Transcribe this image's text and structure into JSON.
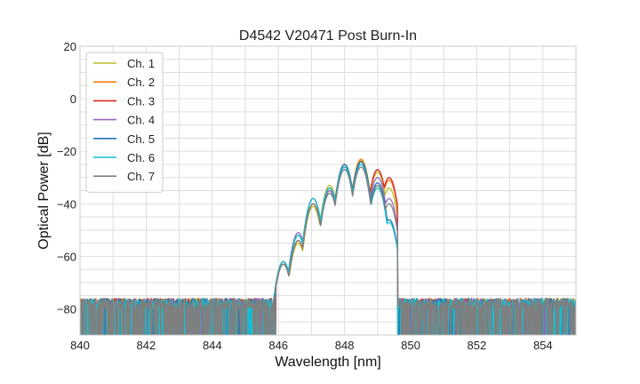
{
  "chart_data": {
    "type": "line",
    "title": "D4542 V20471 Post Burn-In",
    "xlabel": "Wavelength [nm]",
    "ylabel": "Optical Power [dB]",
    "xlim": [
      840,
      855
    ],
    "ylim": [
      -90,
      20
    ],
    "x_ticks": [
      840,
      842,
      844,
      846,
      848,
      850,
      852,
      854
    ],
    "y_ticks": [
      20,
      0,
      -20,
      -40,
      -60,
      -80
    ],
    "x_tick_labels": [
      "840",
      "842",
      "844",
      "846",
      "848",
      "850",
      "852",
      "854"
    ],
    "y_tick_labels": [
      "20",
      "0",
      "−20",
      "−40",
      "−60",
      "−80"
    ],
    "grid": true,
    "legend_position": "top-left",
    "noise_floor": -78,
    "signal_band": [
      845.8,
      849.6
    ],
    "series": [
      {
        "name": "Ch. 1",
        "color": "#bcbd22",
        "peaks": [
          [
            846.15,
            -62
          ],
          [
            846.6,
            -55
          ],
          [
            847.05,
            -41
          ],
          [
            847.55,
            -33
          ],
          [
            848.0,
            -25
          ],
          [
            848.5,
            -23.5
          ],
          [
            849.0,
            -28
          ],
          [
            849.35,
            -34
          ]
        ]
      },
      {
        "name": "Ch. 2",
        "color": "#ff7f0e",
        "peaks": [
          [
            846.15,
            -62
          ],
          [
            846.6,
            -54
          ],
          [
            847.05,
            -40
          ],
          [
            847.55,
            -34
          ],
          [
            848.0,
            -25
          ],
          [
            848.5,
            -23
          ],
          [
            849.0,
            -27
          ],
          [
            849.35,
            -31
          ]
        ]
      },
      {
        "name": "Ch. 3",
        "color": "#d62728",
        "peaks": [
          [
            846.15,
            -63
          ],
          [
            846.6,
            -54
          ],
          [
            847.05,
            -40
          ],
          [
            847.55,
            -35
          ],
          [
            848.0,
            -26
          ],
          [
            848.5,
            -24
          ],
          [
            849.0,
            -27
          ],
          [
            849.35,
            -30
          ]
        ]
      },
      {
        "name": "Ch. 4",
        "color": "#9467bd",
        "peaks": [
          [
            846.15,
            -62
          ],
          [
            846.6,
            -51
          ],
          [
            847.05,
            -38
          ],
          [
            847.55,
            -35
          ],
          [
            848.0,
            -26
          ],
          [
            848.5,
            -24
          ],
          [
            849.0,
            -30
          ],
          [
            849.35,
            -38
          ]
        ]
      },
      {
        "name": "Ch. 5",
        "color": "#1f77b4",
        "peaks": [
          [
            846.15,
            -62
          ],
          [
            846.6,
            -52
          ],
          [
            847.05,
            -38
          ],
          [
            847.55,
            -34
          ],
          [
            848.0,
            -25
          ],
          [
            848.5,
            -24
          ],
          [
            849.0,
            -32
          ],
          [
            849.35,
            -46
          ]
        ]
      },
      {
        "name": "Ch. 6",
        "color": "#17becf",
        "peaks": [
          [
            846.15,
            -62
          ],
          [
            846.6,
            -52
          ],
          [
            847.05,
            -38
          ],
          [
            847.55,
            -34
          ],
          [
            848.0,
            -26
          ],
          [
            848.5,
            -25
          ],
          [
            849.0,
            -34
          ],
          [
            849.35,
            -47
          ]
        ]
      },
      {
        "name": "Ch. 7",
        "color": "#7f7f7f",
        "peaks": [
          [
            846.15,
            -63
          ],
          [
            846.6,
            -54
          ],
          [
            847.05,
            -40
          ],
          [
            847.55,
            -36
          ],
          [
            848.0,
            -27
          ],
          [
            848.5,
            -26
          ],
          [
            849.0,
            -33
          ],
          [
            849.35,
            -40
          ]
        ]
      }
    ]
  }
}
